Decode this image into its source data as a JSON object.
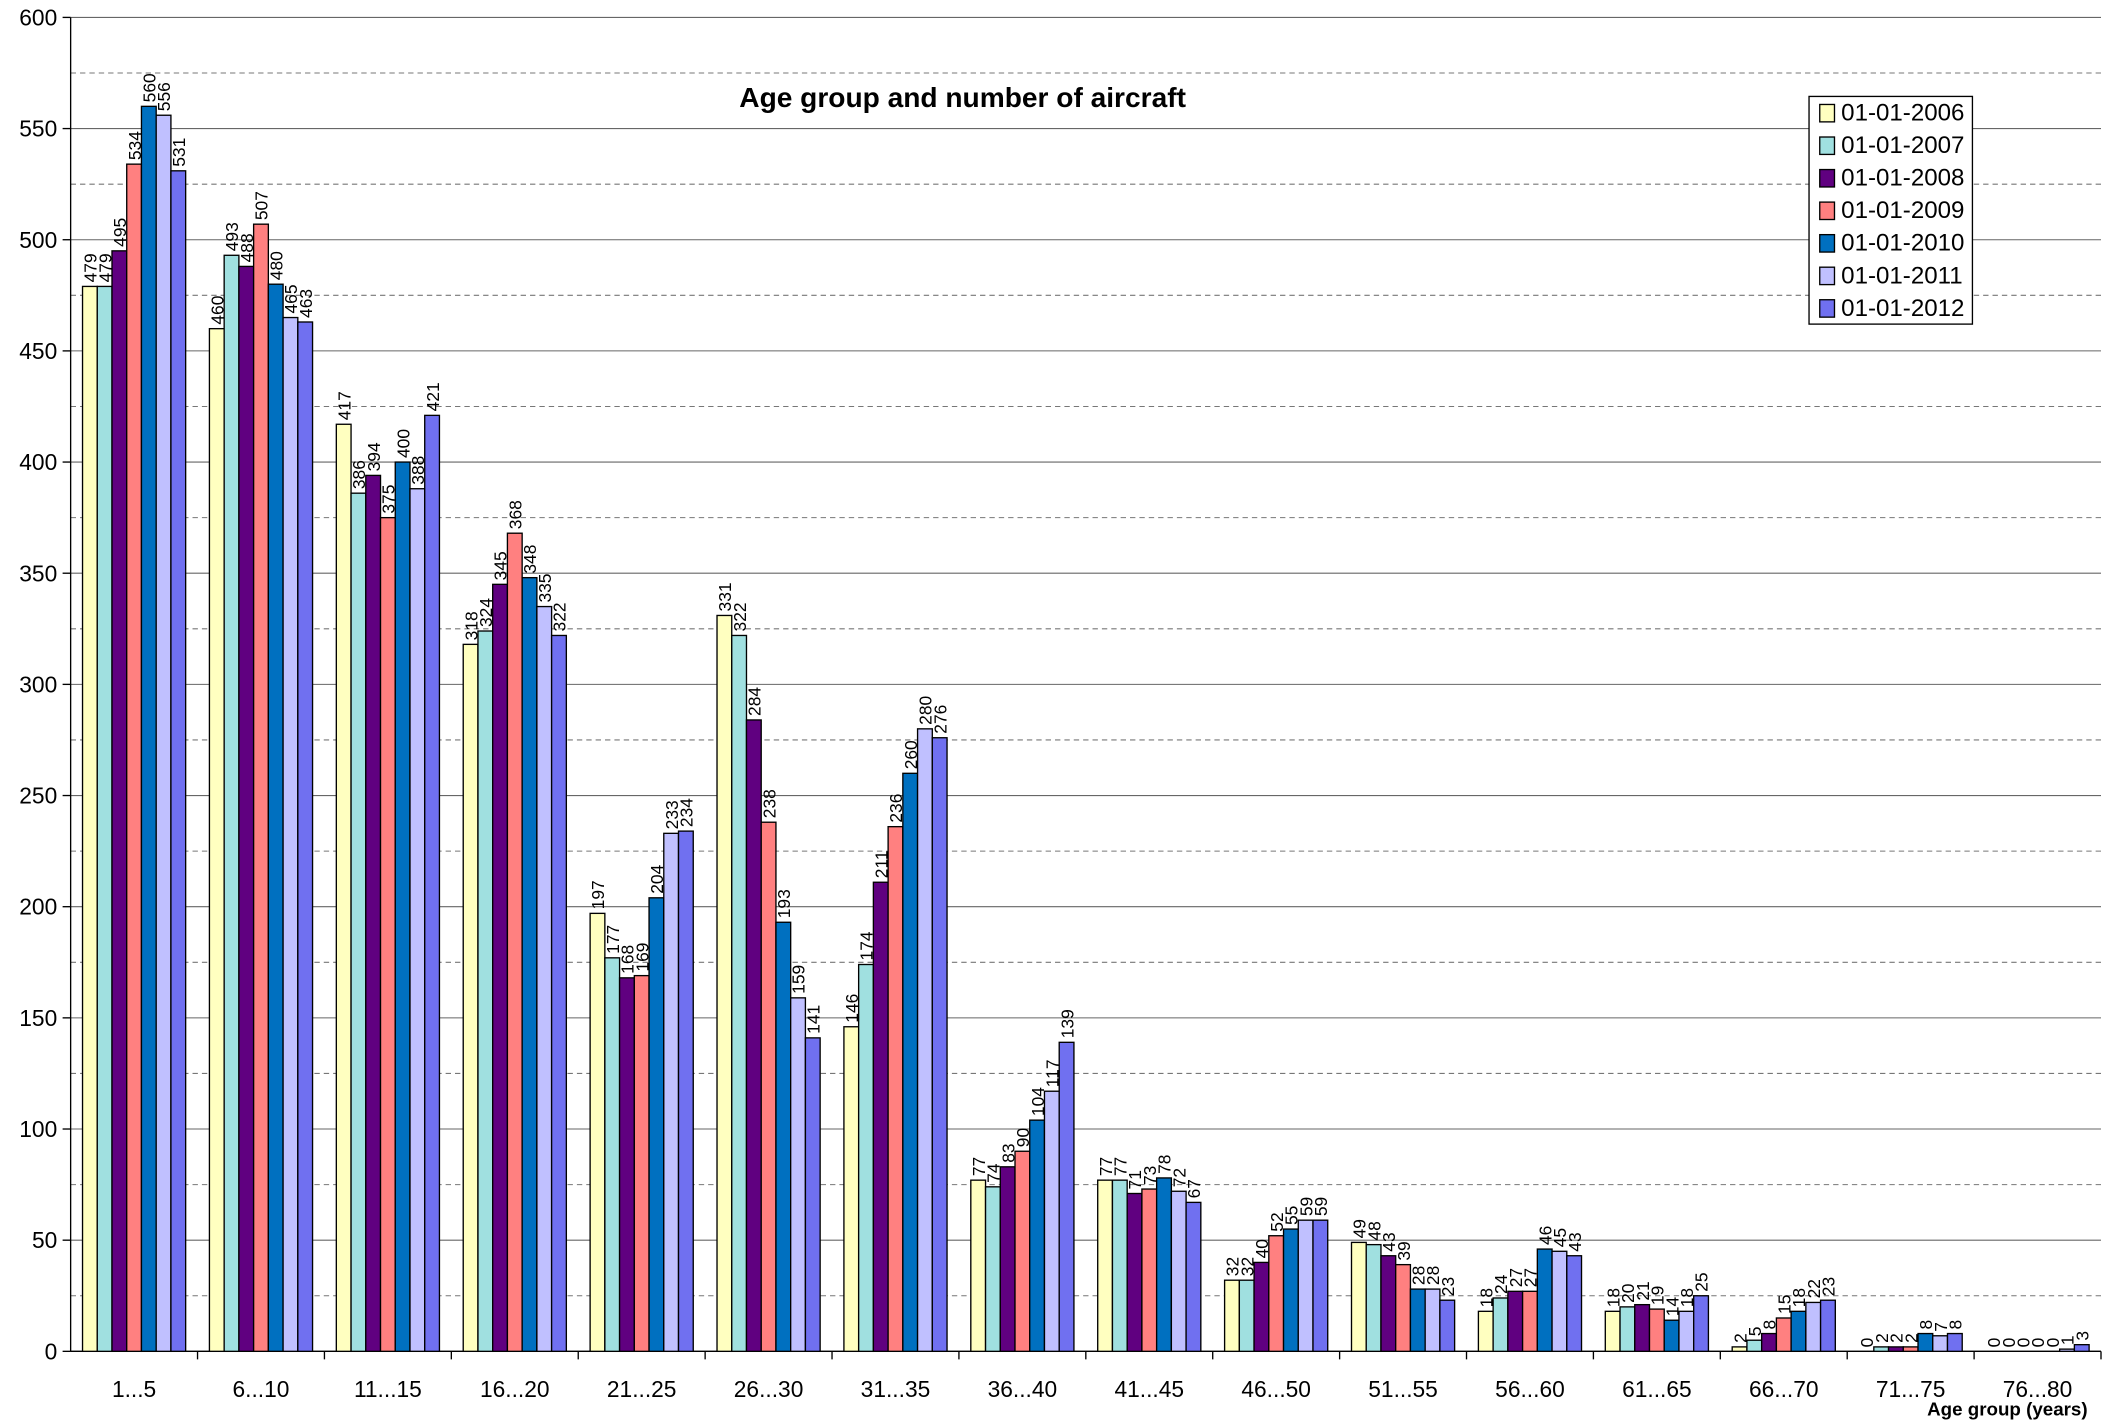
{
  "chart_data": {
    "type": "bar",
    "title": "Age group and number of aircraft",
    "x_label": "Age group (years)",
    "categories": [
      "1...5",
      "6...10",
      "11...15",
      "16...20",
      "21...25",
      "26...30",
      "31...35",
      "36...40",
      "41...45",
      "46...50",
      "51...55",
      "56...60",
      "61...65",
      "66...70",
      "71...75",
      "76...80"
    ],
    "series": [
      {
        "name": "01-01-2006",
        "color": "#ffffc0",
        "values": [
          479,
          460,
          417,
          318,
          197,
          331,
          146,
          77,
          77,
          32,
          49,
          18,
          18,
          2,
          0,
          0
        ]
      },
      {
        "name": "01-01-2007",
        "color": "#a0e0e0",
        "values": [
          479,
          493,
          386,
          324,
          177,
          322,
          174,
          74,
          77,
          32,
          48,
          24,
          20,
          5,
          2,
          0
        ]
      },
      {
        "name": "01-01-2008",
        "color": "#600080",
        "values": [
          495,
          488,
          394,
          345,
          168,
          284,
          211,
          83,
          71,
          40,
          43,
          27,
          21,
          8,
          2,
          0
        ]
      },
      {
        "name": "01-01-2009",
        "color": "#ff8080",
        "values": [
          534,
          507,
          375,
          368,
          169,
          238,
          236,
          90,
          73,
          52,
          39,
          27,
          19,
          15,
          2,
          0
        ]
      },
      {
        "name": "01-01-2010",
        "color": "#0070c0",
        "values": [
          560,
          480,
          400,
          348,
          204,
          193,
          260,
          104,
          78,
          55,
          28,
          46,
          14,
          18,
          8,
          0
        ]
      },
      {
        "name": "01-01-2011",
        "color": "#c0c0ff",
        "values": [
          556,
          465,
          388,
          335,
          233,
          159,
          280,
          117,
          72,
          59,
          28,
          45,
          18,
          22,
          7,
          1
        ]
      },
      {
        "name": "01-01-2012",
        "color": "#7070f0",
        "values": [
          531,
          463,
          421,
          322,
          234,
          141,
          276,
          139,
          67,
          59,
          23,
          43,
          25,
          23,
          8,
          3
        ]
      }
    ],
    "ylim": [
      0,
      600
    ],
    "yticks": [
      0,
      50,
      100,
      150,
      200,
      250,
      300,
      350,
      400,
      450,
      500,
      550,
      600
    ],
    "minor_gridlines": [
      25,
      75,
      125,
      175,
      225,
      275,
      325,
      375,
      425,
      475,
      525,
      575
    ],
    "grid": true,
    "legend": "upper right"
  }
}
